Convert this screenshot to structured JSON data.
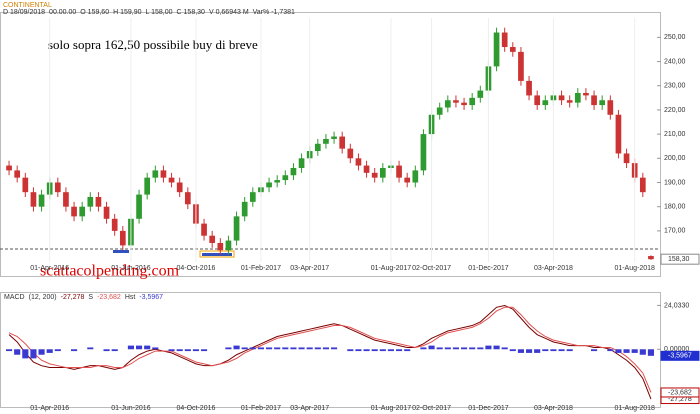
{
  "chart_data": [
    {
      "type": "candlestick",
      "title": "CONTINENTAL",
      "info": [
        "D 18/09/2018",
        "00.00.00",
        "O 159,60",
        "H 159,90",
        "L 158,00",
        "C 158,30",
        "V 0,66943 M",
        "Var% -1,7381"
      ],
      "annotations": [
        "solo sopra 162,50 possibile buy di breve",
        "scattacolpending.com"
      ],
      "reference_line": 162.5,
      "last_price_label": "158,30",
      "up_color": "#2f9a2f",
      "down_color": "#cc3333",
      "categories": [
        null,
        null,
        null,
        null,
        null,
        "01-Apr-2016",
        null,
        null,
        null,
        null,
        null,
        null,
        null,
        null,
        null,
        "01-Jun-2016",
        null,
        null,
        null,
        null,
        null,
        null,
        null,
        "04-Oct-2016",
        null,
        null,
        null,
        null,
        null,
        null,
        null,
        "01-Feb-2017",
        null,
        null,
        null,
        null,
        null,
        "03-Apr-2017",
        null,
        null,
        null,
        null,
        null,
        null,
        null,
        null,
        null,
        "01-Aug-2017",
        null,
        null,
        null,
        null,
        "02-Oct-2017",
        null,
        null,
        null,
        null,
        null,
        null,
        "01-Dec-2017",
        null,
        null,
        null,
        null,
        null,
        null,
        null,
        "03-Apr-2018",
        null,
        null,
        null,
        null,
        null,
        null,
        null,
        null,
        null,
        "01-Aug-2018",
        null,
        null
      ],
      "open": [
        197,
        195,
        192,
        186,
        180,
        185,
        190,
        186,
        180,
        176,
        180,
        184,
        180,
        175,
        170,
        164,
        175,
        185,
        192,
        195,
        192,
        190,
        186,
        181,
        173,
        168,
        165,
        162,
        166,
        176,
        182,
        186,
        188,
        190,
        191,
        193,
        196,
        200,
        203,
        206,
        208,
        209,
        204,
        200,
        197,
        194,
        192,
        196,
        197,
        192,
        190,
        195,
        210,
        218,
        221,
        224,
        223,
        222,
        225,
        228,
        238,
        252,
        246,
        244,
        232,
        226,
        222,
        224,
        226,
        224,
        223,
        227,
        226,
        222,
        224,
        218,
        202,
        198,
        192,
        159.6
      ],
      "high": [
        199,
        197,
        194,
        188,
        187,
        192,
        192,
        188,
        182,
        182,
        186,
        186,
        182,
        177,
        172,
        177,
        187,
        194,
        197,
        197,
        194,
        192,
        188,
        183,
        175,
        170,
        167,
        168,
        178,
        184,
        188,
        190,
        192,
        193,
        195,
        198,
        202,
        205,
        208,
        210,
        211,
        211,
        206,
        202,
        199,
        196,
        198,
        199,
        199,
        194,
        197,
        212,
        220,
        223,
        226,
        226,
        225,
        227,
        230,
        240,
        254,
        254,
        248,
        246,
        234,
        228,
        226,
        228,
        228,
        226,
        229,
        229,
        228,
        226,
        226,
        220,
        204,
        200,
        194,
        159.9
      ],
      "low": [
        193,
        190,
        184,
        178,
        178,
        183,
        184,
        178,
        174,
        174,
        178,
        178,
        173,
        168,
        162,
        162,
        173,
        183,
        190,
        190,
        188,
        184,
        179,
        171,
        166,
        163,
        160,
        160,
        164,
        174,
        180,
        184,
        186,
        188,
        189,
        191,
        194,
        198,
        201,
        204,
        206,
        202,
        198,
        195,
        192,
        190,
        190,
        194,
        190,
        188,
        188,
        193,
        208,
        216,
        219,
        221,
        220,
        220,
        223,
        226,
        236,
        244,
        242,
        230,
        224,
        220,
        220,
        222,
        222,
        221,
        221,
        224,
        220,
        220,
        216,
        200,
        196,
        190,
        184,
        158
      ],
      "close": [
        195,
        192,
        186,
        180,
        185,
        190,
        186,
        180,
        176,
        180,
        184,
        180,
        175,
        170,
        164,
        175,
        185,
        192,
        195,
        192,
        190,
        186,
        181,
        173,
        168,
        165,
        162,
        166,
        176,
        182,
        186,
        188,
        190,
        191,
        193,
        196,
        200,
        203,
        206,
        208,
        209,
        204,
        200,
        197,
        194,
        192,
        196,
        197,
        192,
        190,
        195,
        210,
        218,
        221,
        224,
        223,
        222,
        225,
        228,
        238,
        252,
        246,
        244,
        232,
        226,
        222,
        224,
        226,
        224,
        223,
        227,
        226,
        222,
        224,
        218,
        202,
        198,
        192,
        186,
        158.3
      ],
      "ylim": [
        153,
        258
      ],
      "yticks": [
        {
          "value": 170,
          "label": "170,00"
        },
        {
          "value": 180,
          "label": "180,00"
        },
        {
          "value": 190,
          "label": "190,00"
        },
        {
          "value": 200,
          "label": "200,00"
        },
        {
          "value": 210,
          "label": "210,00"
        },
        {
          "value": 220,
          "label": "220,00"
        },
        {
          "value": 230,
          "label": "230,00"
        },
        {
          "value": 240,
          "label": "240,00"
        },
        {
          "value": 250,
          "label": "250,00"
        }
      ]
    },
    {
      "type": "macd",
      "params": "(12, 200)",
      "series": [
        {
          "name": "MACD",
          "color": "#7a0000",
          "last_value_label": "-27,278",
          "values": [
            8,
            4,
            -2,
            -7,
            -9,
            -10,
            -10,
            -10,
            -11,
            -10,
            -9,
            -9,
            -10,
            -11,
            -10,
            -6,
            -3,
            -1,
            0,
            -1,
            -2,
            -4,
            -6,
            -8,
            -9,
            -9,
            -8,
            -6,
            -3,
            -1,
            1,
            3,
            5,
            7,
            8,
            9,
            10,
            11,
            12,
            13,
            14,
            13,
            11,
            9,
            7,
            5,
            4,
            3,
            2,
            1,
            1,
            3,
            6,
            8,
            10,
            11,
            12,
            13,
            15,
            19,
            23,
            24,
            22,
            17,
            12,
            8,
            6,
            4,
            3,
            2,
            2,
            2,
            1,
            1,
            0,
            -3,
            -6,
            -10,
            -16,
            -27.278
          ]
        },
        {
          "name": "S",
          "color": "#e05050",
          "last_value_label": "-23,682",
          "values": [
            9,
            7,
            3,
            -2,
            -6,
            -8,
            -9,
            -10,
            -10,
            -10,
            -10,
            -9,
            -9,
            -10,
            -10,
            -8,
            -5,
            -3,
            -1,
            -1,
            -1,
            -3,
            -5,
            -7,
            -8,
            -9,
            -8,
            -7,
            -5,
            -2,
            0,
            2,
            4,
            6,
            7,
            8,
            9,
            10,
            11,
            12,
            13,
            13,
            12,
            10,
            8,
            6,
            5,
            4,
            3,
            2,
            1,
            2,
            4,
            7,
            9,
            10,
            11,
            12,
            14,
            17,
            21,
            23,
            23,
            19,
            14,
            10,
            7,
            5,
            4,
            3,
            2,
            2,
            2,
            1,
            1,
            -1,
            -4,
            -8,
            -13,
            -23.682
          ]
        },
        {
          "name": "Hst",
          "color": "#3a3ad0",
          "last_value_label": "-3,5967",
          "values": [
            -1,
            -3,
            -5,
            -5,
            -3,
            -2,
            -1,
            0,
            -1,
            0,
            1,
            0,
            -1,
            -1,
            0,
            2,
            2,
            2,
            1,
            0,
            -1,
            -1,
            -1,
            -1,
            -1,
            0,
            0,
            1,
            2,
            1,
            1,
            1,
            1,
            1,
            1,
            1,
            1,
            1,
            1,
            1,
            1,
            0,
            -1,
            -1,
            -1,
            -1,
            -1,
            -1,
            -1,
            -1,
            0,
            1,
            2,
            1,
            1,
            1,
            1,
            1,
            1,
            2,
            2,
            1,
            -1,
            -2,
            -2,
            -2,
            -1,
            -1,
            -1,
            -1,
            0,
            0,
            -1,
            0,
            -1,
            -2,
            -2,
            -2,
            -3,
            -3.5967
          ]
        }
      ],
      "ylim": [
        -30,
        27
      ],
      "yticks": [
        {
          "value": 0,
          "label": "0,00000"
        },
        {
          "value": 24.033,
          "label": "24,0330"
        }
      ]
    }
  ]
}
